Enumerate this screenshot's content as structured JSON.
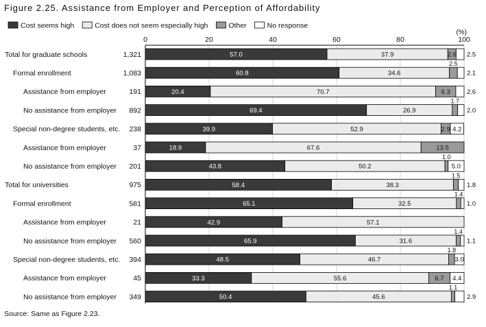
{
  "figure": {
    "title": "Figure 2.25. Assistance from Employer and Perception of Affordability",
    "source": "Source: Same as Figure 2.23."
  },
  "chart_data": {
    "type": "bar",
    "orientation": "horizontal",
    "stacked": true,
    "unit_label": "(%)",
    "xlim": [
      0,
      100
    ],
    "xticks": [
      0,
      20,
      40,
      60,
      80,
      100
    ],
    "grid": true,
    "legend_position": "top",
    "series": [
      {
        "name": "Cost seems high",
        "color": "#3a3a3a",
        "text_color": "#ffffff"
      },
      {
        "name": "Cost does not seem especially high",
        "color": "#ebebeb",
        "text_color": "#111111"
      },
      {
        "name": "Other",
        "color": "#9a9a9a",
        "text_color": "#111111"
      },
      {
        "name": "No response",
        "color": "#ffffff",
        "text_color": "#111111"
      }
    ],
    "rows": [
      {
        "label": "Total for graduate schools",
        "indent": 0,
        "n": "1,321",
        "values": [
          57.0,
          37.9,
          2.6,
          2.5
        ],
        "labels": [
          "57.0",
          "37.9",
          "2.6",
          "2.5"
        ],
        "placement": [
          "in",
          "in",
          "in",
          "right"
        ]
      },
      {
        "label": "Formal enrollment",
        "indent": 1,
        "n": "1,083",
        "values": [
          60.8,
          34.6,
          2.5,
          2.1
        ],
        "labels": [
          "60.8",
          "34.6",
          "2.5",
          "2.1"
        ],
        "placement": [
          "in",
          "in",
          "above",
          "right"
        ]
      },
      {
        "label": "Assistance from employer",
        "indent": 2,
        "n": "191",
        "values": [
          20.4,
          70.7,
          6.3,
          2.6
        ],
        "labels": [
          "20.4",
          "70.7",
          "6.3",
          "2.6"
        ],
        "placement": [
          "in",
          "in",
          "in",
          "right"
        ]
      },
      {
        "label": "No assistance from employer",
        "indent": 2,
        "n": "892",
        "values": [
          69.4,
          26.9,
          1.7,
          2.0
        ],
        "labels": [
          "69.4",
          "26.9",
          "1.7",
          "2.0"
        ],
        "placement": [
          "in",
          "in",
          "above",
          "right"
        ]
      },
      {
        "label": "Special non-degree students, etc.",
        "indent": 1,
        "n": "238",
        "values": [
          39.9,
          52.9,
          2.9,
          4.2
        ],
        "labels": [
          "39.9",
          "52.9",
          "2.9",
          "4.2"
        ],
        "placement": [
          "in",
          "in",
          "in",
          "in"
        ]
      },
      {
        "label": "Assistance from employer",
        "indent": 2,
        "n": "37",
        "values": [
          18.9,
          67.6,
          13.5,
          0
        ],
        "labels": [
          "18.9",
          "67.6",
          "13.5",
          ""
        ],
        "placement": [
          "in",
          "in",
          "in",
          "none"
        ]
      },
      {
        "label": "No assistance from employer",
        "indent": 2,
        "n": "201",
        "values": [
          43.8,
          50.2,
          1.0,
          5.0
        ],
        "labels": [
          "43.8",
          "50.2",
          "1.0",
          "5.0"
        ],
        "placement": [
          "in",
          "in",
          "above",
          "in"
        ]
      },
      {
        "label": "Total for universities",
        "indent": 0,
        "n": "975",
        "values": [
          58.4,
          38.3,
          1.5,
          1.8
        ],
        "labels": [
          "58.4",
          "38.3",
          "1.5",
          "1.8"
        ],
        "placement": [
          "in",
          "in",
          "above",
          "right"
        ]
      },
      {
        "label": "Formal enrollment",
        "indent": 1,
        "n": "581",
        "values": [
          65.1,
          32.5,
          1.4,
          1.0
        ],
        "labels": [
          "65.1",
          "32.5",
          "1.4",
          "1.0"
        ],
        "placement": [
          "in",
          "in",
          "above",
          "right"
        ]
      },
      {
        "label": "Assistance from employer",
        "indent": 2,
        "n": "21",
        "values": [
          42.9,
          57.1,
          0,
          0
        ],
        "labels": [
          "42.9",
          "57.1",
          "",
          ""
        ],
        "placement": [
          "in",
          "in",
          "none",
          "none"
        ]
      },
      {
        "label": "No assistance from employer",
        "indent": 2,
        "n": "560",
        "values": [
          65.9,
          31.6,
          1.4,
          1.1
        ],
        "labels": [
          "65.9",
          "31.6",
          "1.4",
          "1.1"
        ],
        "placement": [
          "in",
          "in",
          "above",
          "right"
        ]
      },
      {
        "label": "Special non-degree students, etc.",
        "indent": 1,
        "n": "394",
        "values": [
          48.5,
          46.7,
          1.8,
          3.0
        ],
        "labels": [
          "48.5",
          "46.7",
          "1.8",
          "3.0"
        ],
        "placement": [
          "in",
          "in",
          "above",
          "in"
        ]
      },
      {
        "label": "Assistance from employer",
        "indent": 2,
        "n": "45",
        "values": [
          33.3,
          55.6,
          6.7,
          4.4
        ],
        "labels": [
          "33.3",
          "55.6",
          "6.7",
          "4.4"
        ],
        "placement": [
          "in",
          "in",
          "in",
          "in"
        ]
      },
      {
        "label": "No assistance from employer",
        "indent": 2,
        "n": "349",
        "values": [
          50.4,
          45.6,
          1.1,
          2.9
        ],
        "labels": [
          "50.4",
          "45.6",
          "1.1",
          "2.9"
        ],
        "placement": [
          "in",
          "in",
          "above",
          "right"
        ]
      }
    ]
  }
}
